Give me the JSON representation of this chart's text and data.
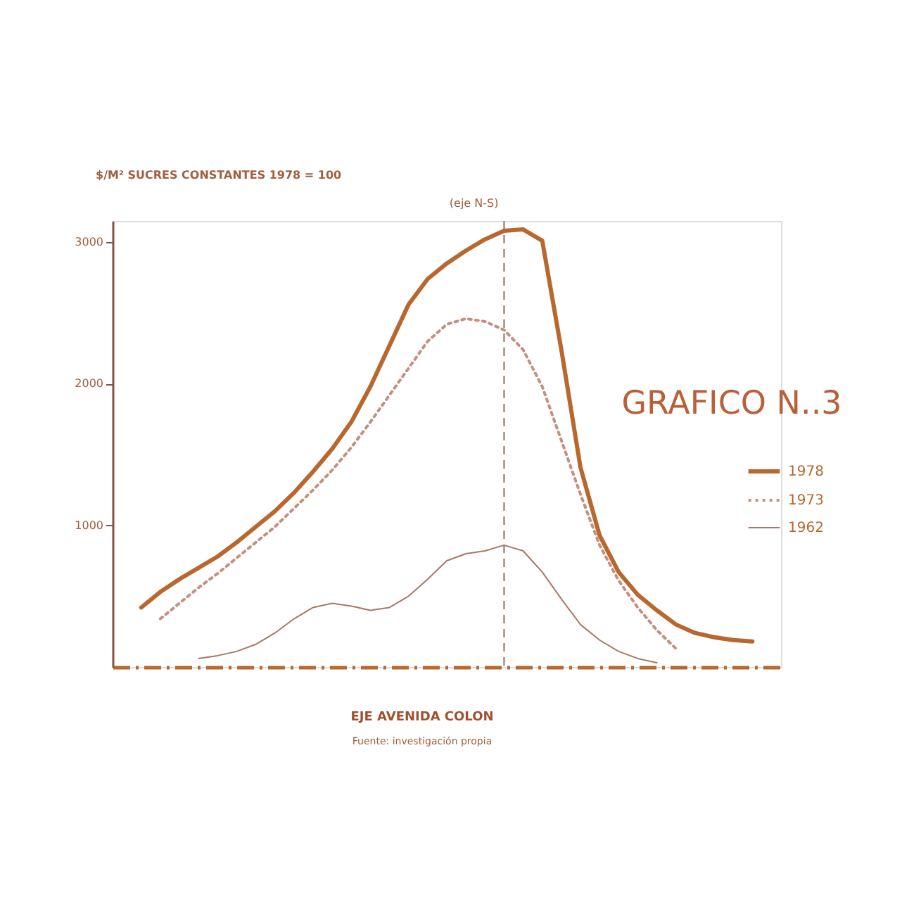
{
  "chart_data": {
    "type": "line",
    "title": "GRAFICO N..3",
    "ylabel": "$/M² SUCRES CONSTANTES 1978 = 100",
    "xlabel": "EJE AVENIDA COLON",
    "annotations": [
      "Fuente: investigación propia",
      "(eje N-S)"
    ],
    "categories": [
      null,
      null,
      null,
      null,
      null,
      null,
      null,
      null,
      null,
      null,
      null,
      null,
      null,
      null,
      null,
      null,
      null,
      null,
      null,
      null,
      null,
      null,
      null,
      null,
      null,
      null,
      null,
      null,
      null,
      null,
      null,
      null,
      null
    ],
    "ylim": [
      0,
      3150
    ],
    "yticks": [
      1000,
      2000,
      3000
    ],
    "tick_labels": "y",
    "grid": false,
    "legend": "right",
    "marker": "none",
    "series": [
      {
        "name": "1978",
        "color": "#b8682e",
        "line_style": "solid",
        "values": [
          420,
          530,
          620,
          700,
          780,
          880,
          990,
          1100,
          1230,
          1380,
          1540,
          1730,
          1980,
          2270,
          2560,
          2740,
          2850,
          2940,
          3020,
          3080,
          3090,
          3010,
          2240,
          1410,
          930,
          670,
          510,
          400,
          300,
          240,
          210,
          190,
          180
        ]
      },
      {
        "name": "1973",
        "color": "#c49080",
        "line_style": "dotted",
        "values": [
          null,
          340,
          450,
          560,
          660,
          770,
          880,
          990,
          1120,
          1250,
          1390,
          1550,
          1730,
          1920,
          2110,
          2300,
          2420,
          2460,
          2440,
          2380,
          2240,
          1980,
          1600,
          1220,
          860,
          610,
          420,
          260,
          130,
          null,
          null,
          null,
          null
        ]
      },
      {
        "name": "1962",
        "color": "#a87868",
        "line_style": "solid",
        "values": [
          null,
          null,
          null,
          60,
          80,
          110,
          160,
          240,
          340,
          420,
          450,
          430,
          400,
          420,
          500,
          620,
          750,
          800,
          820,
          860,
          820,
          670,
          480,
          300,
          190,
          110,
          60,
          30,
          null,
          null,
          null,
          null,
          null
        ]
      }
    ]
  }
}
